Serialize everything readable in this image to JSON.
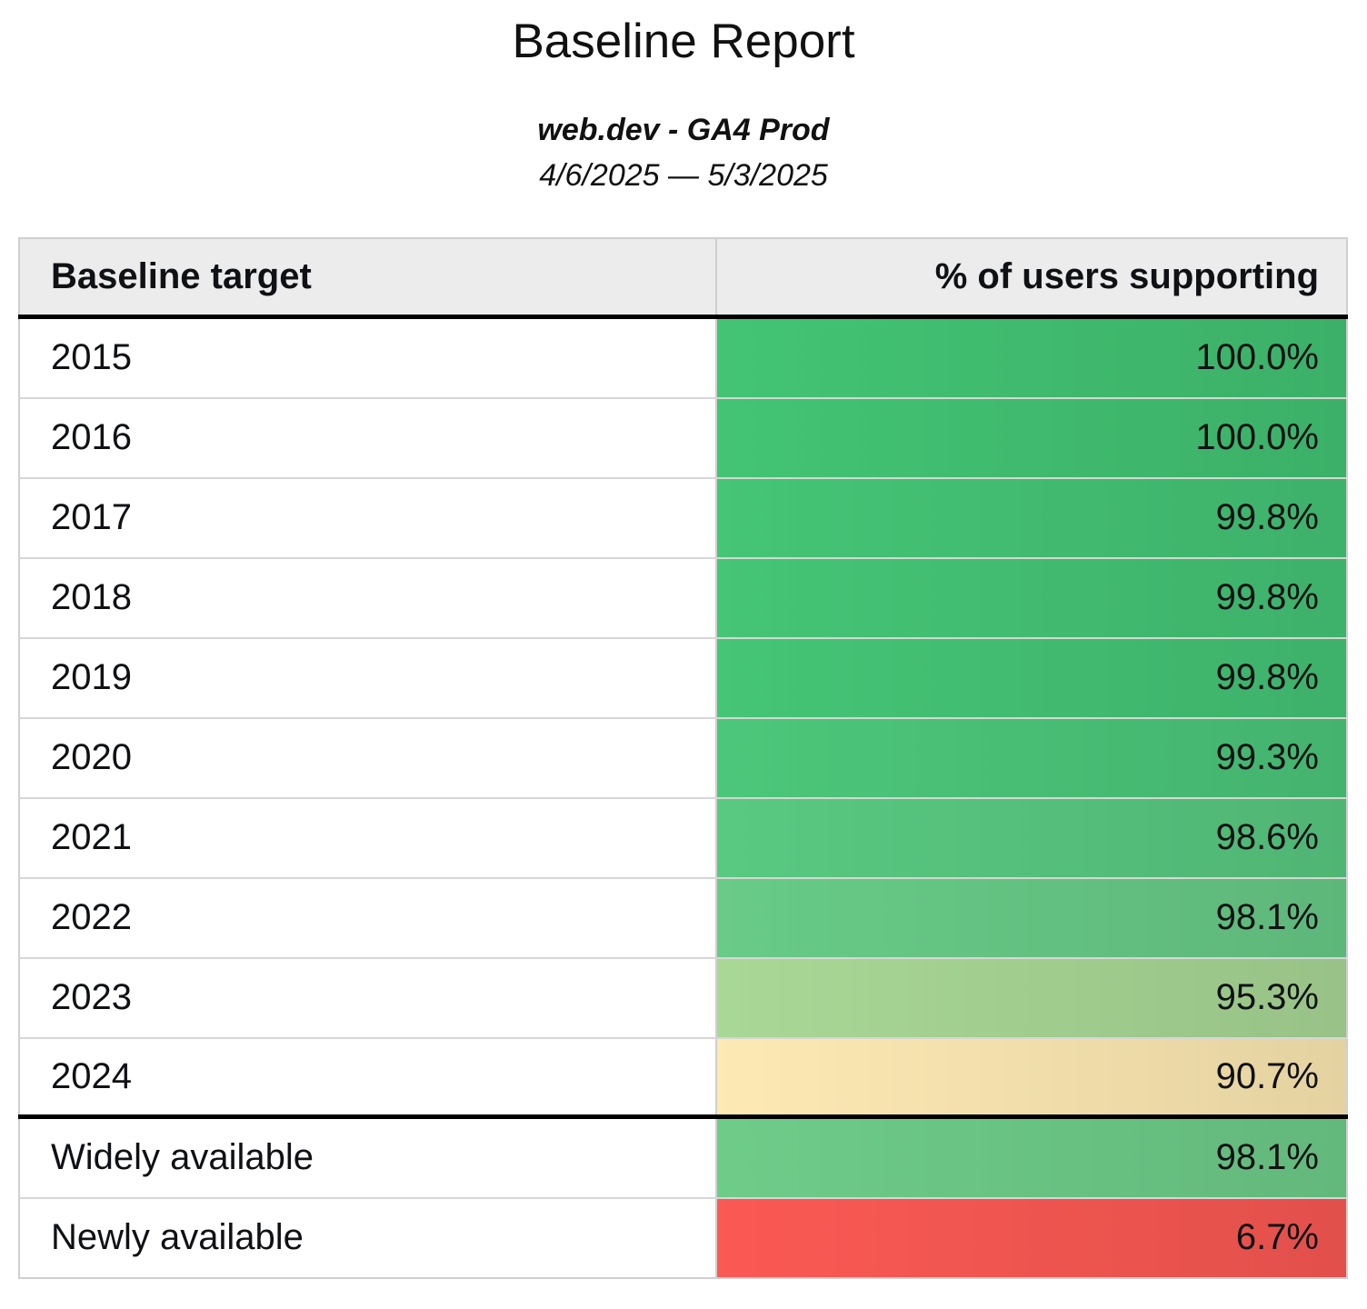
{
  "page": {
    "title": "Baseline Report",
    "subtitle": "web.dev - GA4 Prod",
    "date_range": "4/6/2025 — 5/3/2025"
  },
  "table": {
    "headers": {
      "target": "Baseline target",
      "support": "% of users supporting"
    },
    "rows": [
      {
        "label": "2015",
        "value": "100.0%",
        "color": "#43c474",
        "section": "year-targets"
      },
      {
        "label": "2016",
        "value": "100.0%",
        "color": "#43c474",
        "section": "year-targets"
      },
      {
        "label": "2017",
        "value": "99.8%",
        "color": "#45c576",
        "section": "year-targets"
      },
      {
        "label": "2018",
        "value": "99.8%",
        "color": "#45c576",
        "section": "year-targets"
      },
      {
        "label": "2019",
        "value": "99.8%",
        "color": "#45c576",
        "section": "year-targets"
      },
      {
        "label": "2020",
        "value": "99.3%",
        "color": "#4cc77a",
        "section": "year-targets"
      },
      {
        "label": "2021",
        "value": "98.6%",
        "color": "#59c981",
        "section": "year-targets"
      },
      {
        "label": "2022",
        "value": "98.1%",
        "color": "#68cb87",
        "section": "year-targets"
      },
      {
        "label": "2023",
        "value": "95.3%",
        "color": "#a9d896",
        "section": "year-targets"
      },
      {
        "label": "2024",
        "value": "90.7%",
        "color": "#fde9b3",
        "section": "year-targets"
      },
      {
        "label": "Widely available",
        "value": "98.1%",
        "color": "#6ecc89",
        "section": "availability"
      },
      {
        "label": "Newly available",
        "value": "6.7%",
        "color": "#fb5953",
        "section": "availability"
      }
    ]
  },
  "style_colors": {
    "header_bg": "#ececec",
    "grid_border": "#d6d6d6",
    "outer_border": "#cfcfcf",
    "section_divider": "#000000",
    "text": "#0f1115"
  },
  "chart_data": {
    "type": "table",
    "title": "Baseline Report",
    "subtitle": "web.dev - GA4 Prod",
    "date_range": "4/6/2025 — 5/3/2025",
    "columns": [
      "Baseline target",
      "% of users supporting"
    ],
    "rows": [
      [
        "2015",
        100.0
      ],
      [
        "2016",
        100.0
      ],
      [
        "2017",
        99.8
      ],
      [
        "2018",
        99.8
      ],
      [
        "2019",
        99.8
      ],
      [
        "2020",
        99.3
      ],
      [
        "2021",
        98.6
      ],
      [
        "2022",
        98.1
      ],
      [
        "2023",
        95.3
      ],
      [
        "2024",
        90.7
      ],
      [
        "Widely available",
        98.1
      ],
      [
        "Newly available",
        6.7
      ]
    ],
    "value_unit": "%",
    "color_scale": "red-yellow-green heatmap on % of users supporting",
    "layout": "two-column table, values right-aligned, thick black rule under header and under 2024 row"
  }
}
